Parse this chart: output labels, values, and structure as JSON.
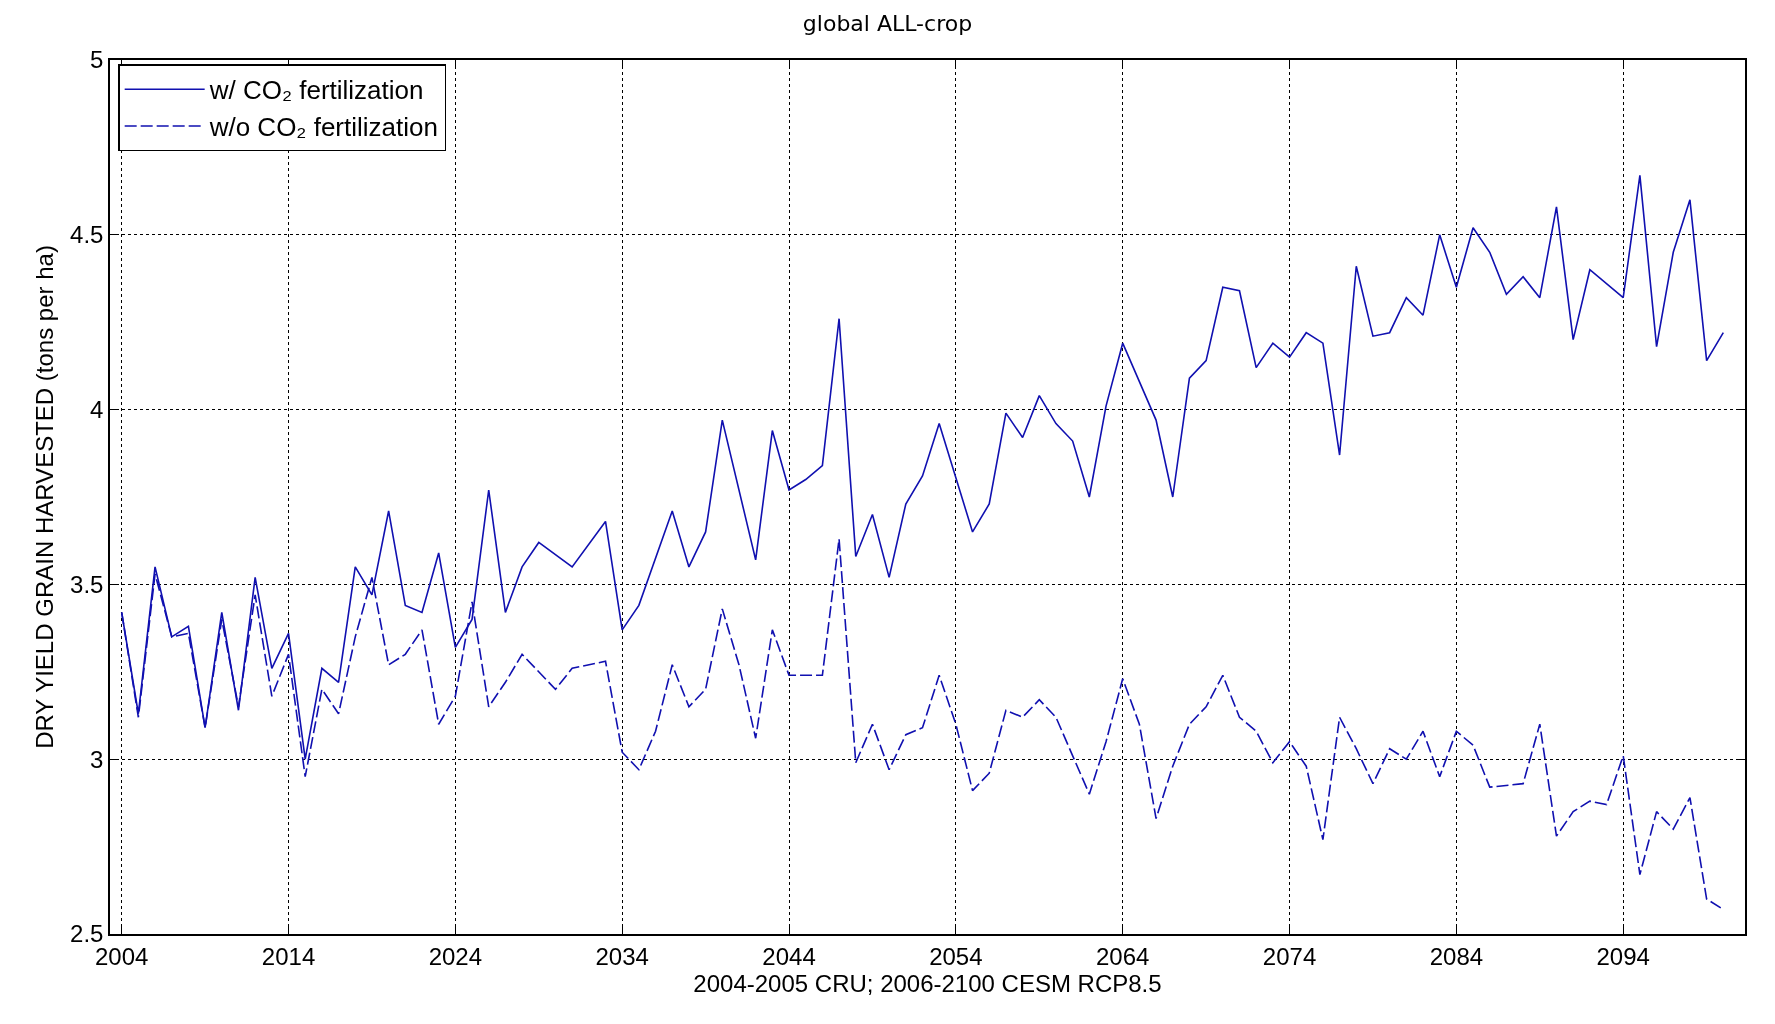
{
  "chart_data": {
    "type": "line",
    "title": "global ALL-crop",
    "xlabel": "2004-2005 CRU; 2006-2100 CESM RCP8.5",
    "ylabel": "DRY YIELD GRAIN HARVESTED (tons per ha)",
    "xlim": [
      2003.3,
      2101.3
    ],
    "xticks": [
      2004,
      2014,
      2024,
      2034,
      2044,
      2054,
      2064,
      2074,
      2084,
      2094
    ],
    "ylim": [
      2.5,
      5
    ],
    "yticks": [
      2.5,
      3,
      3.5,
      4,
      4.5,
      5
    ],
    "grid": true,
    "legend": "top left",
    "marker": "none",
    "series": [
      {
        "name": "w/ CO₂ fertilization",
        "color": "#1010b0",
        "line_style": "solid",
        "x": [
          2004,
          2005,
          2006,
          2007,
          2008,
          2009,
          2010,
          2011,
          2012,
          2013,
          2014,
          2015,
          2016,
          2017,
          2018,
          2019,
          2020,
          2021,
          2022,
          2023,
          2024,
          2025,
          2026,
          2027,
          2028,
          2029,
          2031,
          2033,
          2034,
          2035,
          2037,
          2038,
          2039,
          2040,
          2042,
          2043,
          2044,
          2045,
          2046,
          2047,
          2048,
          2049,
          2050,
          2051,
          2052,
          2053,
          2055,
          2056,
          2057,
          2058,
          2059,
          2060,
          2061,
          2062,
          2063,
          2064,
          2066,
          2067,
          2068,
          2069,
          2070,
          2071,
          2072,
          2073,
          2074,
          2075,
          2076,
          2077,
          2078,
          2079,
          2080,
          2081,
          2082,
          2083,
          2084,
          2085,
          2086,
          2087,
          2088,
          2089,
          2090,
          2091,
          2092,
          2094,
          2095,
          2096,
          2097,
          2098,
          2099,
          2100
        ],
        "values": [
          3.42,
          3.13,
          3.55,
          3.35,
          3.38,
          3.09,
          3.42,
          3.14,
          3.52,
          3.26,
          3.36,
          3.0,
          3.26,
          3.22,
          3.55,
          3.47,
          3.71,
          3.44,
          3.42,
          3.59,
          3.32,
          3.4,
          3.77,
          3.42,
          3.55,
          3.62,
          3.55,
          3.68,
          3.37,
          3.44,
          3.71,
          3.55,
          3.65,
          3.97,
          3.57,
          3.94,
          3.77,
          3.8,
          3.84,
          4.26,
          3.58,
          3.7,
          3.52,
          3.73,
          3.81,
          3.96,
          3.65,
          3.73,
          3.99,
          3.92,
          4.04,
          3.96,
          3.91,
          3.75,
          4.01,
          4.19,
          3.97,
          3.75,
          4.09,
          4.14,
          4.35,
          4.34,
          4.12,
          4.19,
          4.15,
          4.22,
          4.19,
          3.87,
          4.41,
          4.21,
          4.22,
          4.32,
          4.27,
          4.5,
          4.35,
          4.52,
          4.45,
          4.33,
          4.38,
          4.32,
          4.58,
          4.2,
          4.4,
          4.32,
          4.67,
          4.18,
          4.45,
          4.6,
          4.14,
          4.22
        ]
      },
      {
        "name": "w/o CO₂ fertilization",
        "color": "#1010b0",
        "line_style": "dashed",
        "x": [
          2004,
          2005,
          2006,
          2007,
          2008,
          2009,
          2010,
          2011,
          2012,
          2013,
          2014,
          2015,
          2016,
          2017,
          2018,
          2019,
          2020,
          2021,
          2022,
          2023,
          2024,
          2025,
          2026,
          2027,
          2028,
          2030,
          2031,
          2033,
          2034,
          2035,
          2036,
          2037,
          2038,
          2039,
          2040,
          2041,
          2042,
          2043,
          2044,
          2046,
          2047,
          2048,
          2049,
          2050,
          2051,
          2052,
          2053,
          2054,
          2055,
          2056,
          2057,
          2058,
          2059,
          2060,
          2062,
          2063,
          2064,
          2065,
          2066,
          2067,
          2068,
          2069,
          2070,
          2071,
          2072,
          2073,
          2074,
          2075,
          2076,
          2077,
          2078,
          2079,
          2080,
          2081,
          2082,
          2083,
          2084,
          2085,
          2086,
          2088,
          2089,
          2090,
          2091,
          2092,
          2093,
          2094,
          2095,
          2096,
          2097,
          2098,
          2099,
          2100
        ],
        "values": [
          3.42,
          3.12,
          3.53,
          3.35,
          3.36,
          3.09,
          3.4,
          3.15,
          3.47,
          3.18,
          3.3,
          2.95,
          3.2,
          3.13,
          3.35,
          3.52,
          3.27,
          3.3,
          3.37,
          3.1,
          3.18,
          3.45,
          3.15,
          3.22,
          3.3,
          3.2,
          3.26,
          3.28,
          3.02,
          2.97,
          3.08,
          3.27,
          3.15,
          3.2,
          3.43,
          3.27,
          3.06,
          3.37,
          3.24,
          3.24,
          3.63,
          2.99,
          3.1,
          2.97,
          3.07,
          3.09,
          3.24,
          3.1,
          2.91,
          2.96,
          3.14,
          3.12,
          3.17,
          3.12,
          2.9,
          3.05,
          3.23,
          3.1,
          2.83,
          2.98,
          3.1,
          3.15,
          3.24,
          3.12,
          3.08,
          2.99,
          3.05,
          2.98,
          2.77,
          3.12,
          3.03,
          2.93,
          3.03,
          3.0,
          3.08,
          2.95,
          3.08,
          3.04,
          2.92,
          2.93,
          3.1,
          2.78,
          2.85,
          2.88,
          2.87,
          3.01,
          2.67,
          2.85,
          2.8,
          2.89,
          2.6,
          2.57
        ]
      }
    ]
  }
}
